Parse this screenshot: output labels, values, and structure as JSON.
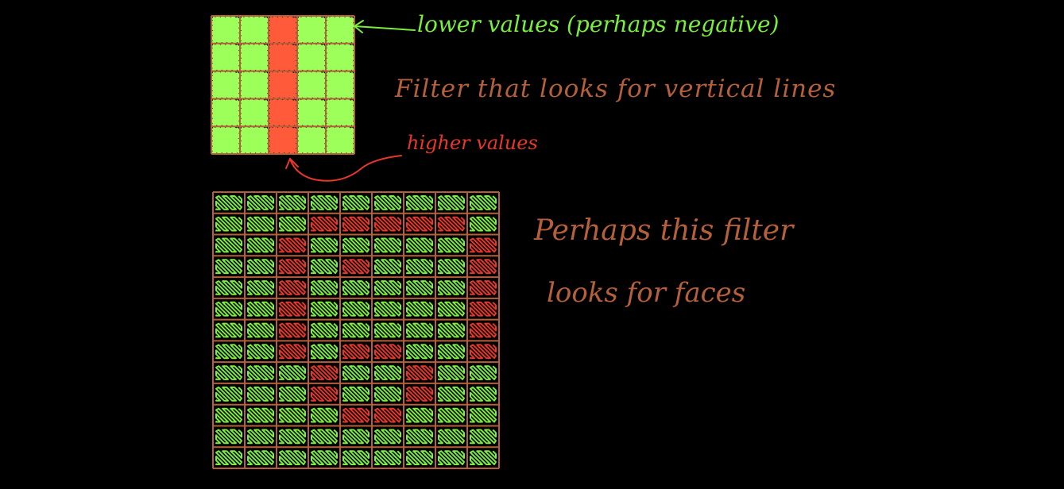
{
  "colors": {
    "background": "#000000",
    "grid": "#b5603a",
    "low": "#7aee3c",
    "high": "#e8372a",
    "annotation_low": "#7aee3c",
    "annotation_high": "#e8372a",
    "note": "#b5603a"
  },
  "labels": {
    "lower_values": "lower values (perhaps negative)",
    "higher_values": "higher values",
    "vertical_filter_note": "Filter that looks for vertical lines",
    "face_filter_note_line1": "Perhaps this filter",
    "face_filter_note_line2": "looks for faces"
  },
  "small_filter": {
    "rows": 5,
    "cols": 5,
    "cells": [
      [
        "low",
        "low",
        "high",
        "low",
        "low"
      ],
      [
        "low",
        "low",
        "high",
        "low",
        "low"
      ],
      [
        "low",
        "low",
        "high",
        "low",
        "low"
      ],
      [
        "low",
        "low",
        "high",
        "low",
        "low"
      ],
      [
        "low",
        "low",
        "high",
        "low",
        "low"
      ]
    ]
  },
  "face_filter": {
    "rows": 13,
    "cols": 9,
    "cells": [
      [
        "low",
        "low",
        "low",
        "low",
        "low",
        "low",
        "low",
        "low",
        "low"
      ],
      [
        "low",
        "low",
        "low",
        "high",
        "high",
        "high",
        "high",
        "high",
        "low"
      ],
      [
        "low",
        "low",
        "high",
        "low",
        "low",
        "low",
        "low",
        "low",
        "high"
      ],
      [
        "low",
        "low",
        "high",
        "low",
        "high",
        "low",
        "low",
        "low",
        "high"
      ],
      [
        "low",
        "low",
        "high",
        "low",
        "low",
        "low",
        "low",
        "low",
        "high"
      ],
      [
        "low",
        "low",
        "high",
        "low",
        "low",
        "low",
        "low",
        "low",
        "high"
      ],
      [
        "low",
        "low",
        "high",
        "low",
        "low",
        "low",
        "low",
        "low",
        "high"
      ],
      [
        "low",
        "low",
        "high",
        "low",
        "high",
        "high",
        "low",
        "low",
        "high"
      ],
      [
        "low",
        "low",
        "low",
        "high",
        "low",
        "low",
        "high",
        "low",
        "low"
      ],
      [
        "low",
        "low",
        "low",
        "high",
        "low",
        "low",
        "high",
        "low",
        "low"
      ],
      [
        "low",
        "low",
        "low",
        "low",
        "high",
        "high",
        "low",
        "low",
        "low"
      ],
      [
        "low",
        "low",
        "low",
        "low",
        "low",
        "low",
        "low",
        "low",
        "low"
      ],
      [
        "low",
        "low",
        "low",
        "low",
        "low",
        "low",
        "low",
        "low",
        "low"
      ]
    ]
  }
}
